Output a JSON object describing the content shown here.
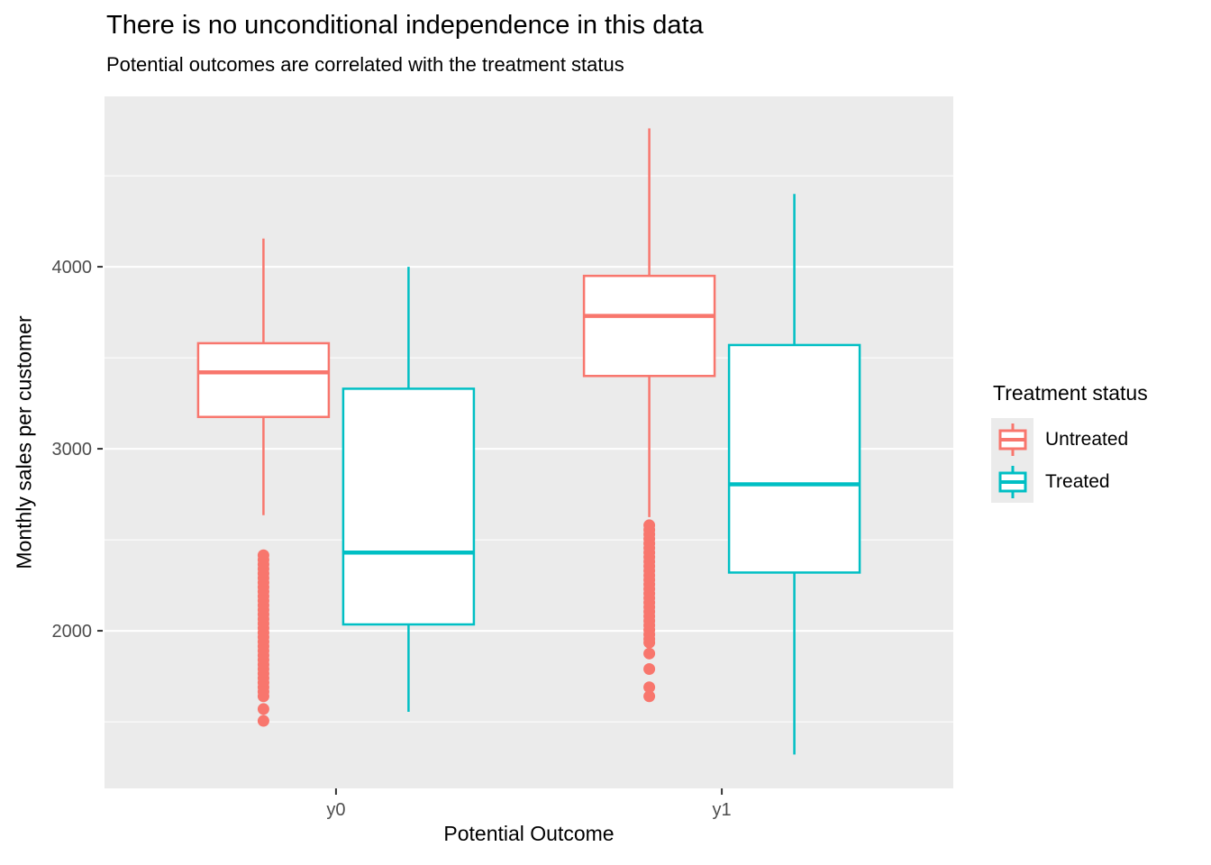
{
  "chart_data": {
    "type": "boxplot",
    "title": "There is no unconditional independence in this data",
    "subtitle": "Potential outcomes are correlated with the treatment status",
    "xlabel": "Potential Outcome",
    "ylabel": "Monthly sales per customer",
    "categories": [
      "y0",
      "y1"
    ],
    "ylim": [
      1134,
      4936
    ],
    "yticks": [
      2000,
      3000,
      4000
    ],
    "yticks_minor": [
      1500,
      2500,
      3500,
      4500
    ],
    "grid": "on",
    "panel_bg": "#EBEBEB",
    "gridline_color": "#FFFFFF",
    "tick_text_color": "#4D4D4D",
    "tick_mark_color": "#333333",
    "legend": {
      "title": "Treatment status",
      "position": "right",
      "entries": [
        {
          "label": "Untreated",
          "color": "#F8766D"
        },
        {
          "label": "Treated",
          "color": "#00BFC4"
        }
      ]
    },
    "series": [
      {
        "name": "Untreated",
        "color": "#F8766D",
        "boxes": [
          {
            "category": "y0",
            "whisker_low": 2635,
            "q1": 3175,
            "median": 3420,
            "q3": 3580,
            "whisker_high": 4155,
            "outliers": [
              2415,
              2390,
              2365,
              2340,
              2315,
              2290,
              2265,
              2240,
              2215,
              2190,
              2165,
              2140,
              2115,
              2090,
              2065,
              2040,
              2015,
              1990,
              1965,
              1940,
              1915,
              1890,
              1865,
              1840,
              1815,
              1790,
              1765,
              1740,
              1715,
              1690,
              1665,
              1640,
              1570,
              1505
            ]
          },
          {
            "category": "y1",
            "whisker_low": 2625,
            "q1": 3400,
            "median": 3730,
            "q3": 3950,
            "whisker_high": 4760,
            "outliers": [
              2580,
              2555,
              2530,
              2505,
              2480,
              2455,
              2430,
              2405,
              2380,
              2355,
              2330,
              2305,
              2280,
              2255,
              2230,
              2205,
              2180,
              2155,
              2130,
              2105,
              2080,
              2055,
              2030,
              2005,
              1980,
              1955,
              1935,
              1875,
              1790,
              1690,
              1640
            ]
          }
        ]
      },
      {
        "name": "Treated",
        "color": "#00BFC4",
        "boxes": [
          {
            "category": "y0",
            "whisker_low": 1555,
            "q1": 2035,
            "median": 2430,
            "q3": 3330,
            "whisker_high": 4000,
            "outliers": []
          },
          {
            "category": "y1",
            "whisker_low": 1320,
            "q1": 2320,
            "median": 2805,
            "q3": 3570,
            "whisker_high": 4400,
            "outliers": []
          }
        ]
      }
    ]
  }
}
